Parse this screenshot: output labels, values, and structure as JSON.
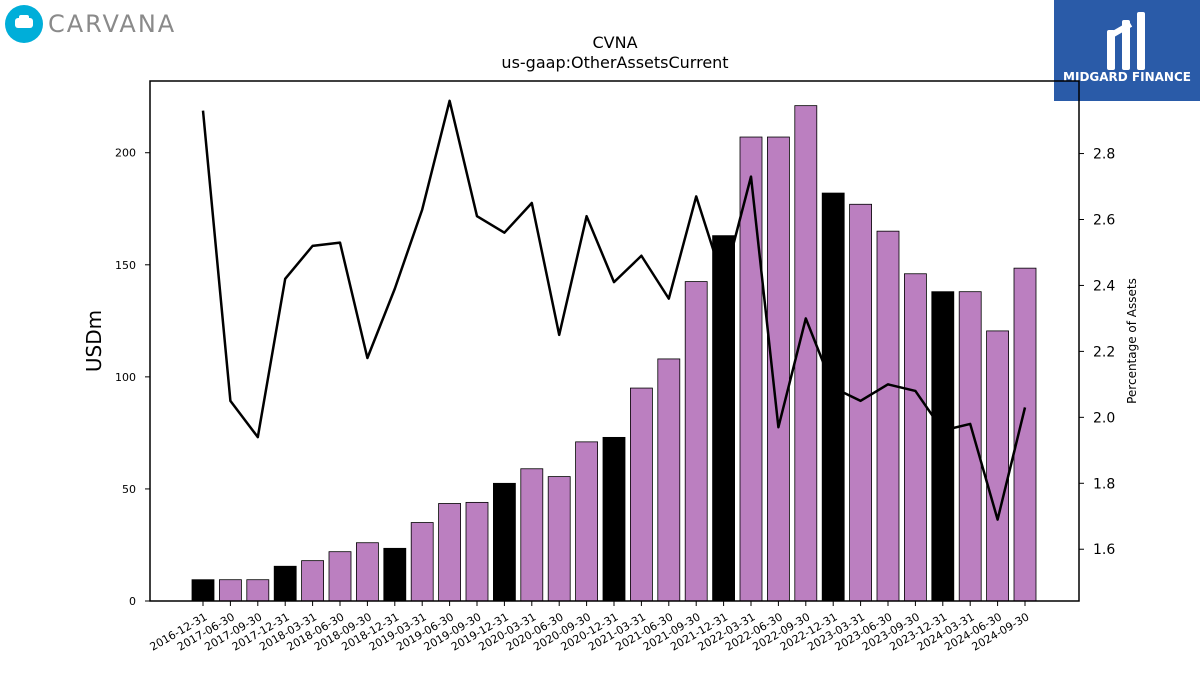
{
  "logos": {
    "left": {
      "text": "CARVANA",
      "accent": "#00aed9"
    },
    "right": {
      "text": "MIDGARD FINANCE",
      "bg": "#2a5ba8"
    }
  },
  "chart_data": {
    "type": "bar",
    "title": "CVNA",
    "subtitle": "us-gaap:OtherAssetsCurrent",
    "ylabel": "USDm",
    "y2label": "Percentage of Assets",
    "ylim": [
      0,
      232
    ],
    "y2lim": [
      1.443,
      3.02
    ],
    "yticks": [
      0,
      50,
      100,
      150,
      200
    ],
    "y2ticks": [
      1.6,
      1.8,
      2.0,
      2.2,
      2.4,
      2.6,
      2.8
    ],
    "y2tick_labels": [
      "1.6",
      "1.8",
      "2.0",
      "2.2",
      "2.4",
      "2.6",
      "2.8"
    ],
    "categories": [
      "2016-12-31",
      "2017-06-30",
      "2017-09-30",
      "2017-12-31",
      "2018-03-31",
      "2018-06-30",
      "2018-09-30",
      "2018-12-31",
      "2019-03-31",
      "2019-06-30",
      "2019-09-30",
      "2019-12-31",
      "2020-03-31",
      "2020-06-30",
      "2020-09-30",
      "2020-12-31",
      "2021-03-31",
      "2021-06-30",
      "2021-09-30",
      "2021-12-31",
      "2022-03-31",
      "2022-06-30",
      "2022-09-30",
      "2022-12-31",
      "2023-03-31",
      "2023-06-30",
      "2023-09-30",
      "2023-12-31",
      "2024-03-31",
      "2024-06-30",
      "2024-09-30"
    ],
    "bar_values": [
      9.5,
      9.5,
      9.5,
      15.5,
      18,
      22,
      26,
      23.5,
      35,
      43.5,
      44,
      52.5,
      59,
      55.5,
      71,
      73,
      95,
      108,
      142.5,
      163,
      207,
      207,
      221,
      182,
      177,
      165,
      146,
      138,
      138,
      120.5,
      148.5
    ],
    "bar_colors": [
      "#000000",
      "#bb7fc0",
      "#bb7fc0",
      "#000000",
      "#bb7fc0",
      "#bb7fc0",
      "#bb7fc0",
      "#000000",
      "#bb7fc0",
      "#bb7fc0",
      "#bb7fc0",
      "#000000",
      "#bb7fc0",
      "#bb7fc0",
      "#bb7fc0",
      "#000000",
      "#bb7fc0",
      "#bb7fc0",
      "#bb7fc0",
      "#000000",
      "#bb7fc0",
      "#bb7fc0",
      "#bb7fc0",
      "#000000",
      "#bb7fc0",
      "#bb7fc0",
      "#bb7fc0",
      "#000000",
      "#bb7fc0",
      "#bb7fc0",
      "#bb7fc0"
    ],
    "line_values": [
      2.93,
      2.05,
      1.94,
      2.42,
      2.52,
      2.53,
      2.18,
      2.39,
      2.63,
      2.96,
      2.61,
      2.56,
      2.65,
      2.25,
      2.61,
      2.41,
      2.49,
      2.36,
      2.67,
      2.41,
      2.73,
      1.97,
      2.3,
      2.09,
      2.05,
      2.1,
      2.08,
      1.96,
      1.98,
      1.69,
      2.03
    ],
    "line_color": "#000000",
    "grid": false
  }
}
